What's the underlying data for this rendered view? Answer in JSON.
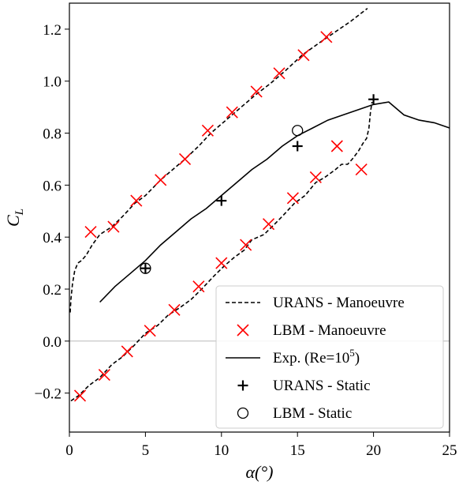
{
  "chart_data": {
    "type": "line",
    "xlabel": "α(°)",
    "ylabel": "C_L",
    "xlim": [
      0,
      25
    ],
    "ylim": [
      -0.35,
      1.3
    ],
    "xticks": [
      0,
      5,
      10,
      15,
      20,
      25
    ],
    "yticks": [
      -0.2,
      0.0,
      0.2,
      0.4,
      0.6,
      0.8,
      1.0,
      1.2
    ],
    "ytick_labels": [
      "−0.2",
      "0.0",
      "0.2",
      "0.4",
      "0.6",
      "0.8",
      "1.0",
      "1.2"
    ],
    "zero_line": true,
    "legend_position": "lower-right",
    "series": [
      {
        "name": "URANS - Manoeuvre",
        "style": "dashed",
        "color": "#000000",
        "segments": [
          [
            [
              0.05,
              0.11
            ],
            [
              0.1,
              0.16
            ],
            [
              0.2,
              0.22
            ],
            [
              0.35,
              0.27
            ],
            [
              0.55,
              0.3
            ],
            [
              0.8,
              0.31
            ],
            [
              1.1,
              0.33
            ],
            [
              1.5,
              0.37
            ],
            [
              2,
              0.41
            ],
            [
              2.8,
              0.44
            ],
            [
              3.5,
              0.48
            ],
            [
              4.3,
              0.53
            ],
            [
              5,
              0.56
            ],
            [
              6,
              0.62
            ],
            [
              6.8,
              0.66
            ],
            [
              7.6,
              0.7
            ],
            [
              8.5,
              0.75
            ],
            [
              9.3,
              0.8
            ],
            [
              10.5,
              0.86
            ],
            [
              11.5,
              0.91
            ],
            [
              12.3,
              0.95
            ],
            [
              13.2,
              0.99
            ],
            [
              14.2,
              1.04
            ],
            [
              15.3,
              1.1
            ],
            [
              16.5,
              1.15
            ],
            [
              17.5,
              1.19
            ],
            [
              18.5,
              1.23
            ],
            [
              19.6,
              1.28
            ]
          ],
          [
            [
              0.1,
              -0.23
            ],
            [
              0.6,
              -0.21
            ],
            [
              1.3,
              -0.17
            ],
            [
              2,
              -0.14
            ],
            [
              2.8,
              -0.09
            ],
            [
              3.5,
              -0.06
            ],
            [
              4.2,
              -0.02
            ],
            [
              5,
              0.03
            ],
            [
              5.8,
              0.06
            ],
            [
              6.5,
              0.1
            ],
            [
              7.3,
              0.13
            ],
            [
              8,
              0.16
            ],
            [
              8.7,
              0.2
            ],
            [
              9.5,
              0.25
            ],
            [
              10.2,
              0.29
            ],
            [
              10.8,
              0.32
            ],
            [
              11.5,
              0.35
            ],
            [
              12,
              0.39
            ],
            [
              12.8,
              0.41
            ],
            [
              13.5,
              0.45
            ],
            [
              14,
              0.48
            ],
            [
              14.8,
              0.53
            ],
            [
              15.5,
              0.56
            ],
            [
              16.2,
              0.61
            ],
            [
              16.8,
              0.63
            ],
            [
              17.5,
              0.66
            ],
            [
              17.9,
              0.68
            ],
            [
              18.3,
              0.68
            ],
            [
              18.6,
              0.7
            ],
            [
              19,
              0.73
            ],
            [
              19.3,
              0.76
            ],
            [
              19.55,
              0.78
            ],
            [
              19.7,
              0.82
            ],
            [
              19.8,
              0.88
            ],
            [
              19.9,
              0.92
            ]
          ]
        ]
      },
      {
        "name": "LBM - Manoeuvre",
        "style": "marker-x",
        "color": "#ff0000",
        "points": [
          [
            0.7,
            -0.21
          ],
          [
            2.3,
            -0.13
          ],
          [
            3.8,
            -0.04
          ],
          [
            5.3,
            0.04
          ],
          [
            6.9,
            0.12
          ],
          [
            8.5,
            0.21
          ],
          [
            10,
            0.3
          ],
          [
            11.6,
            0.37
          ],
          [
            13.1,
            0.45
          ],
          [
            14.7,
            0.55
          ],
          [
            16.2,
            0.63
          ],
          [
            17.6,
            0.75
          ],
          [
            19.2,
            0.66
          ],
          [
            1.4,
            0.42
          ],
          [
            2.9,
            0.44
          ],
          [
            4.4,
            0.54
          ],
          [
            6,
            0.62
          ],
          [
            7.6,
            0.7
          ],
          [
            9.1,
            0.81
          ],
          [
            10.7,
            0.88
          ],
          [
            12.3,
            0.96
          ],
          [
            13.8,
            1.03
          ],
          [
            15.4,
            1.1
          ],
          [
            16.9,
            1.17
          ]
        ]
      },
      {
        "name": "Exp. (Re=10⁵)",
        "style": "solid",
        "color": "#000000",
        "points": [
          [
            2,
            0.15
          ],
          [
            3,
            0.21
          ],
          [
            4,
            0.26
          ],
          [
            5,
            0.31
          ],
          [
            6,
            0.37
          ],
          [
            7,
            0.42
          ],
          [
            8,
            0.47
          ],
          [
            9,
            0.51
          ],
          [
            10,
            0.56
          ],
          [
            11,
            0.61
          ],
          [
            12,
            0.66
          ],
          [
            13,
            0.7
          ],
          [
            14,
            0.75
          ],
          [
            15,
            0.79
          ],
          [
            16,
            0.82
          ],
          [
            17,
            0.85
          ],
          [
            18,
            0.87
          ],
          [
            19,
            0.89
          ],
          [
            20,
            0.91
          ],
          [
            21,
            0.92
          ],
          [
            22,
            0.87
          ],
          [
            23,
            0.85
          ],
          [
            24,
            0.84
          ],
          [
            25,
            0.82
          ]
        ]
      },
      {
        "name": "URANS - Static",
        "style": "marker-plus",
        "color": "#000000",
        "points": [
          [
            5,
            0.28
          ],
          [
            10,
            0.54
          ],
          [
            15,
            0.75
          ],
          [
            20,
            0.93
          ]
        ]
      },
      {
        "name": "LBM - Static",
        "style": "marker-circle",
        "color": "#000000",
        "points": [
          [
            5,
            0.28
          ],
          [
            15,
            0.81
          ]
        ]
      }
    ],
    "legend": [
      {
        "label": "URANS - Manoeuvre",
        "marker": "dashed"
      },
      {
        "label": "LBM - Manoeuvre",
        "marker": "x"
      },
      {
        "label": "Exp. (Re=10",
        "sup": "5",
        "suffix": ")",
        "marker": "solid"
      },
      {
        "label": "URANS - Static",
        "marker": "plus"
      },
      {
        "label": "LBM - Static",
        "marker": "circle"
      }
    ]
  }
}
